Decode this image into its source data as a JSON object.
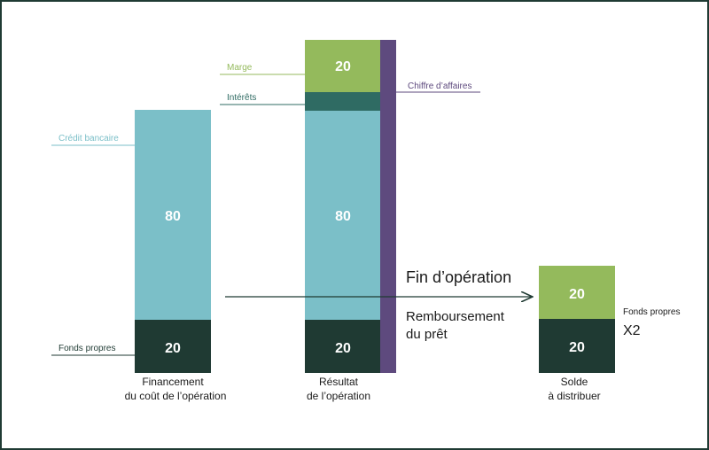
{
  "colors": {
    "dark": "#1f3a33",
    "light_blue": "#7bbfc8",
    "green": "#94ba5c",
    "teal": "#2f6b63",
    "purple": "#5e4a7e",
    "arrow": "#1f3a33",
    "border": "#1f3a33"
  },
  "columns": {
    "financement": {
      "label_line1": "Financement",
      "label_line2": "du coût de l’opération",
      "credit_value": "80",
      "fonds_value": "20",
      "credit_label": "Crédit bancaire",
      "fonds_label": "Fonds propres"
    },
    "resultat": {
      "label_line1": "Résultat",
      "label_line2": "de l’opération",
      "marge_value": "20",
      "credit_value": "80",
      "fonds_value": "20",
      "marge_label": "Marge",
      "interets_label": "Intérêts",
      "ca_label": "Chiffre d’affaires"
    },
    "solde": {
      "label_line1": "Solde",
      "label_line2": "à distribuer",
      "top_value": "20",
      "bottom_value": "20",
      "fonds_label": "Fonds propres",
      "multiplier": "X2"
    }
  },
  "arrow": {
    "title": "Fin d’opération",
    "subtitle_line1": "Remboursement",
    "subtitle_line2": "du prêt"
  }
}
